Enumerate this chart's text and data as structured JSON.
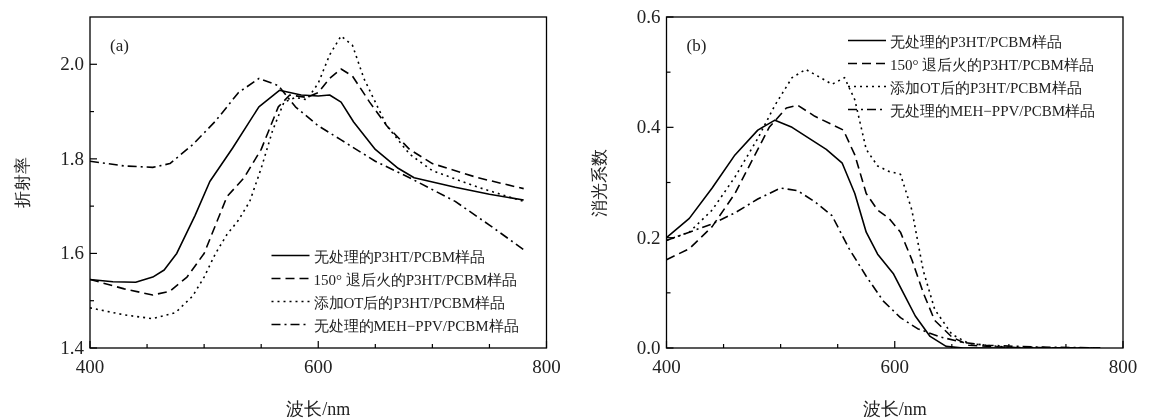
{
  "chart_data": [
    {
      "type": "line",
      "xlabel": "波长/nm",
      "ylabel": "折射率",
      "annotations": [
        "(a)"
      ],
      "legend": "bottom right",
      "grid": false,
      "xlim": [
        400,
        800
      ],
      "xticks": [
        400,
        {
          "value": 450,
          "label": null
        },
        {
          "value": 500,
          "label": null
        },
        {
          "value": 550,
          "label": null
        },
        600,
        {
          "value": 650,
          "label": null
        },
        {
          "value": 700,
          "label": null
        },
        {
          "value": 750,
          "label": null
        },
        800
      ],
      "ylim": [
        1.4,
        2.1
      ],
      "yticks": [
        {
          "value": 1.4,
          "label": "1.4"
        },
        {
          "value": 1.5,
          "label": null
        },
        {
          "value": 1.6,
          "label": "1.6"
        },
        {
          "value": 1.7,
          "label": null
        },
        {
          "value": 1.8,
          "label": "1.8"
        },
        {
          "value": 1.9,
          "label": null
        },
        {
          "value": 2.0,
          "label": "2.0"
        }
      ],
      "series": [
        {
          "name": "无处理的P3HT/PCBM样品",
          "color": "#000000",
          "line_style": "solid",
          "x": [
            400,
            420,
            440,
            455,
            465,
            476,
            492,
            505,
            525,
            548,
            566,
            585,
            600,
            610,
            620,
            631,
            650,
            670,
            684,
            720,
            750,
            780
          ],
          "values": [
            1.545,
            1.54,
            1.539,
            1.55,
            1.565,
            1.6,
            1.68,
            1.752,
            1.823,
            1.91,
            1.945,
            1.935,
            1.933,
            1.935,
            1.92,
            1.878,
            1.82,
            1.78,
            1.76,
            1.74,
            1.725,
            1.713
          ]
        },
        {
          "name": "150° 退后火的P3HT/PCBM样品",
          "color": "#000000",
          "line_style": "dashed",
          "x": [
            400,
            430,
            455,
            470,
            485,
            500,
            510,
            520,
            535,
            550,
            565,
            575,
            590,
            600,
            610,
            620,
            630,
            645,
            660,
            680,
            700,
            740,
            780
          ],
          "values": [
            1.545,
            1.525,
            1.512,
            1.52,
            1.55,
            1.6,
            1.66,
            1.72,
            1.76,
            1.82,
            1.91,
            1.935,
            1.93,
            1.94,
            1.97,
            1.99,
            1.975,
            1.92,
            1.87,
            1.82,
            1.79,
            1.76,
            1.737
          ]
        },
        {
          "name": "添加OT后的P3HT/PCBM样品",
          "color": "#000000",
          "line_style": "dotted",
          "x": [
            400,
            430,
            455,
            475,
            490,
            500,
            510,
            520,
            530,
            540,
            550,
            560,
            570,
            580,
            590,
            600,
            610,
            620,
            630,
            640,
            660,
            680,
            700,
            740,
            780
          ],
          "values": [
            1.485,
            1.47,
            1.462,
            1.475,
            1.51,
            1.55,
            1.6,
            1.64,
            1.67,
            1.71,
            1.78,
            1.86,
            1.92,
            1.93,
            1.925,
            1.96,
            2.02,
            2.06,
            2.04,
            1.97,
            1.87,
            1.81,
            1.775,
            1.74,
            1.71
          ]
        },
        {
          "name": "无处理的MEH−PPV/PCBM样品",
          "color": "#000000",
          "line_style": "dashdot",
          "x": [
            400,
            430,
            455,
            470,
            490,
            510,
            530,
            548,
            565,
            580,
            600,
            620,
            650,
            680,
            720,
            750,
            780
          ],
          "values": [
            1.795,
            1.785,
            1.782,
            1.79,
            1.83,
            1.88,
            1.94,
            1.97,
            1.955,
            1.91,
            1.87,
            1.84,
            1.795,
            1.76,
            1.71,
            1.66,
            1.608
          ]
        }
      ]
    },
    {
      "type": "line",
      "xlabel": "波长/nm",
      "ylabel": "消光系数",
      "annotations": [
        "(b)"
      ],
      "legend": "top right",
      "grid": false,
      "xlim": [
        400,
        800
      ],
      "xticks": [
        400,
        {
          "value": 450,
          "label": null
        },
        {
          "value": 500,
          "label": null
        },
        {
          "value": 550,
          "label": null
        },
        600,
        {
          "value": 650,
          "label": null
        },
        {
          "value": 700,
          "label": null
        },
        {
          "value": 750,
          "label": null
        },
        800
      ],
      "ylim": [
        0,
        0.6
      ],
      "yticks": [
        {
          "value": 0,
          "label": "0.0"
        },
        {
          "value": 0.1,
          "label": null
        },
        {
          "value": 0.2,
          "label": "0.2"
        },
        {
          "value": 0.3,
          "label": null
        },
        {
          "value": 0.4,
          "label": "0.4"
        },
        {
          "value": 0.5,
          "label": null
        },
        {
          "value": 0.6,
          "label": "0.6"
        }
      ],
      "series": [
        {
          "name": "无处理的P3HT/PCBM样品",
          "color": "#000000",
          "line_style": "solid",
          "x": [
            400,
            420,
            440,
            460,
            480,
            495,
            510,
            525,
            540,
            554,
            565,
            575,
            585,
            599,
            610,
            618,
            631,
            645,
            660,
            700,
            780
          ],
          "values": [
            0.2,
            0.235,
            0.29,
            0.35,
            0.395,
            0.413,
            0.4,
            0.38,
            0.36,
            0.335,
            0.28,
            0.21,
            0.17,
            0.134,
            0.09,
            0.058,
            0.021,
            0.003,
            0,
            0,
            0
          ]
        },
        {
          "name": "150° 退后火的P3HT/PCBM样品",
          "color": "#000000",
          "line_style": "dashed",
          "x": [
            400,
            420,
            440,
            460,
            475,
            490,
            505,
            515,
            530,
            545,
            555,
            565,
            575,
            585,
            595,
            605,
            615,
            625,
            635,
            650,
            665,
            700,
            780
          ],
          "values": [
            0.16,
            0.18,
            0.22,
            0.28,
            0.34,
            0.4,
            0.435,
            0.44,
            0.42,
            0.405,
            0.395,
            0.35,
            0.28,
            0.25,
            0.235,
            0.21,
            0.16,
            0.1,
            0.05,
            0.02,
            0.005,
            0.001,
            0
          ]
        },
        {
          "name": "添加OT后的P3HT/PCBM样品",
          "color": "#000000",
          "line_style": "dotted",
          "x": [
            400,
            420,
            440,
            460,
            480,
            495,
            510,
            522,
            535,
            545,
            556,
            565,
            575,
            585,
            595,
            605,
            615,
            625,
            635,
            650,
            665,
            700,
            780
          ],
          "values": [
            0.195,
            0.21,
            0.25,
            0.31,
            0.38,
            0.44,
            0.49,
            0.505,
            0.49,
            0.478,
            0.49,
            0.45,
            0.36,
            0.33,
            0.32,
            0.315,
            0.25,
            0.14,
            0.07,
            0.025,
            0.008,
            0.001,
            0
          ]
        },
        {
          "name": "无处理的MEH−PPV/PCBM样品",
          "color": "#000000",
          "line_style": "dashdot",
          "x": [
            400,
            420,
            440,
            460,
            480,
            500,
            515,
            530,
            545,
            560,
            575,
            590,
            605,
            620,
            640,
            660,
            680,
            720,
            780
          ],
          "values": [
            0.195,
            0.21,
            0.225,
            0.245,
            0.27,
            0.29,
            0.285,
            0.265,
            0.24,
            0.18,
            0.13,
            0.085,
            0.055,
            0.035,
            0.02,
            0.01,
            0.005,
            0.002,
            0
          ]
        }
      ]
    }
  ]
}
